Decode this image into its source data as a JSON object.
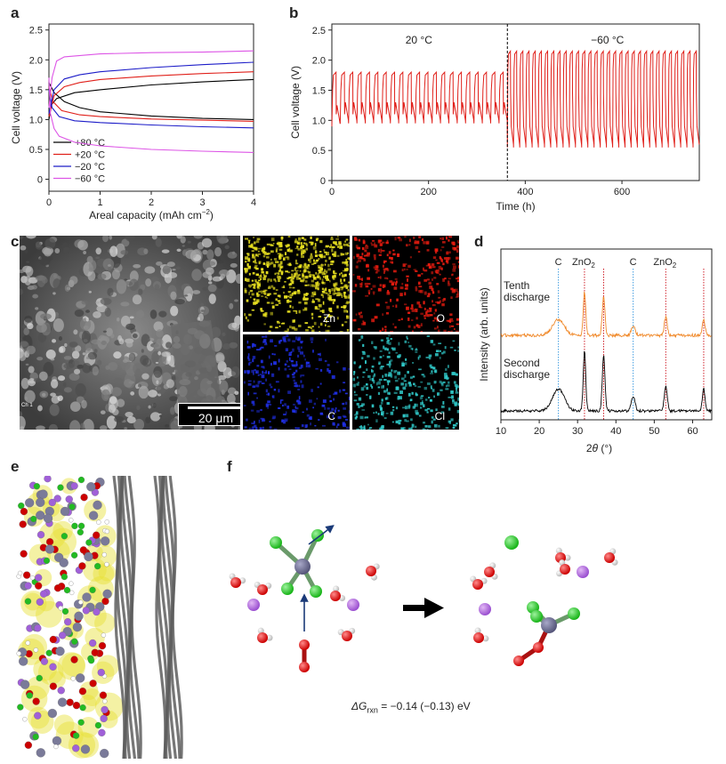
{
  "panel_labels": {
    "a": "a",
    "b": "b",
    "c": "c",
    "d": "d",
    "e": "e",
    "f": "f"
  },
  "chart_data": [
    {
      "panel": "a",
      "type": "line",
      "xlabel": "Areal capacity (mAh cm",
      "xlabel_sup": "−2",
      "xlabel_close": ")",
      "ylabel": "Cell voltage (V)",
      "xlim": [
        0,
        4
      ],
      "ylim": [
        -0.2,
        2.6
      ],
      "xticks": [
        "0",
        "1",
        "2",
        "3",
        "4"
      ],
      "yticks": [
        "0",
        "0.5",
        "1.0",
        "1.5",
        "2.0",
        "2.5"
      ],
      "legend_position": "bottom-left",
      "series": [
        {
          "name": "+80 °C",
          "color": "#000000",
          "charge": [
            [
              0,
              1.0
            ],
            [
              0.05,
              1.25
            ],
            [
              0.15,
              1.35
            ],
            [
              0.5,
              1.45
            ],
            [
              1,
              1.5
            ],
            [
              2,
              1.58
            ],
            [
              3,
              1.63
            ],
            [
              4,
              1.67
            ]
          ],
          "discharge": [
            [
              0,
              1.62
            ],
            [
              0.1,
              1.45
            ],
            [
              0.3,
              1.3
            ],
            [
              0.6,
              1.2
            ],
            [
              1,
              1.13
            ],
            [
              2,
              1.06
            ],
            [
              3,
              1.02
            ],
            [
              4,
              1.0
            ]
          ]
        },
        {
          "name": "+20 °C",
          "color": "#e0201a",
          "charge": [
            [
              0,
              1.05
            ],
            [
              0.1,
              1.4
            ],
            [
              0.3,
              1.55
            ],
            [
              0.6,
              1.62
            ],
            [
              1,
              1.67
            ],
            [
              2,
              1.73
            ],
            [
              3,
              1.77
            ],
            [
              4,
              1.8
            ]
          ],
          "discharge": [
            [
              0,
              1.55
            ],
            [
              0.08,
              1.3
            ],
            [
              0.25,
              1.15
            ],
            [
              0.6,
              1.08
            ],
            [
              1,
              1.05
            ],
            [
              2,
              1.01
            ],
            [
              3,
              0.99
            ],
            [
              4,
              0.97
            ]
          ]
        },
        {
          "name": "−20 °C",
          "color": "#1c1cc8",
          "charge": [
            [
              0,
              1.1
            ],
            [
              0.1,
              1.5
            ],
            [
              0.3,
              1.68
            ],
            [
              0.6,
              1.75
            ],
            [
              1,
              1.8
            ],
            [
              2,
              1.87
            ],
            [
              3,
              1.92
            ],
            [
              4,
              1.96
            ]
          ],
          "discharge": [
            [
              0,
              1.5
            ],
            [
              0.06,
              1.2
            ],
            [
              0.2,
              1.05
            ],
            [
              0.5,
              0.98
            ],
            [
              1,
              0.95
            ],
            [
              2,
              0.91
            ],
            [
              3,
              0.88
            ],
            [
              4,
              0.86
            ]
          ]
        },
        {
          "name": "−60 °C",
          "color": "#dd55e6",
          "charge": [
            [
              0,
              1.2
            ],
            [
              0.06,
              1.7
            ],
            [
              0.15,
              1.98
            ],
            [
              0.3,
              2.05
            ],
            [
              1,
              2.1
            ],
            [
              2,
              2.12
            ],
            [
              3,
              2.13
            ],
            [
              4,
              2.15
            ]
          ],
          "discharge": [
            [
              0,
              1.7
            ],
            [
              0.03,
              1.1
            ],
            [
              0.1,
              0.85
            ],
            [
              0.2,
              0.72
            ],
            [
              0.5,
              0.62
            ],
            [
              1,
              0.56
            ],
            [
              2,
              0.5
            ],
            [
              3,
              0.47
            ],
            [
              4,
              0.45
            ]
          ]
        }
      ]
    },
    {
      "panel": "b",
      "type": "line",
      "xlabel": "Time (h)",
      "ylabel": "Cell voltage (V)",
      "xlim": [
        0,
        760
      ],
      "ylim": [
        0,
        2.6
      ],
      "xticks": [
        "0",
        "200",
        "400",
        "600"
      ],
      "yticks": [
        "0",
        "0.5",
        "1.0",
        "1.5",
        "2.0",
        "2.5"
      ],
      "annotations": [
        "20 °C",
        "−60 °C"
      ],
      "divider_time": 363,
      "color": "#e0201a",
      "segments": [
        {
          "t_start": 0,
          "t_end": 363,
          "cycles": 21,
          "upper_v": 1.8,
          "lower_v": 0.95
        },
        {
          "t_start": 363,
          "t_end": 760,
          "cycles": 31,
          "upper_v": 2.15,
          "lower_v": 0.55
        }
      ]
    },
    {
      "panel": "d",
      "type": "line",
      "xlabel": "2",
      "xlabel_theta": "θ",
      "xlabel_rest": " (°)",
      "ylabel": "Intensity (arb. units)",
      "xlim": [
        10,
        65
      ],
      "xticks": [
        "10",
        "20",
        "30",
        "40",
        "50",
        "60"
      ],
      "reference_lines": [
        {
          "label": "C",
          "x": 25.0,
          "color": "#3d9be0"
        },
        {
          "label": "ZnO",
          "sub": "2",
          "x": 31.8,
          "color": "#d0202a"
        },
        {
          "label": "",
          "x": 36.8,
          "color": "#d0202a"
        },
        {
          "label": "C",
          "x": 44.5,
          "color": "#3d9be0"
        },
        {
          "label": "ZnO",
          "sub": "2",
          "x": 53.0,
          "color": "#d0202a"
        },
        {
          "label": "",
          "x": 62.9,
          "color": "#d0202a"
        }
      ],
      "series": [
        {
          "name": "Tenth discharge",
          "name_lines": [
            "Tenth",
            "discharge"
          ],
          "color": "#f0892a"
        },
        {
          "name": "Second discharge",
          "name_lines": [
            "Second",
            "discharge"
          ],
          "color": "#000000"
        }
      ]
    }
  ],
  "panel_c": {
    "scalebar": "20 μm",
    "channel": "Ch 1",
    "maps": [
      {
        "element": "Zn",
        "color": "#e8e020"
      },
      {
        "element": "O",
        "color": "#e81c10"
      },
      {
        "element": "C",
        "color": "#2030e8"
      },
      {
        "element": "Cl",
        "color": "#30c8c8"
      }
    ]
  },
  "panel_f": {
    "equation": "ΔG",
    "equation_sub": "rxn",
    "equation_value": " = −0.14 (−0.13) eV"
  }
}
